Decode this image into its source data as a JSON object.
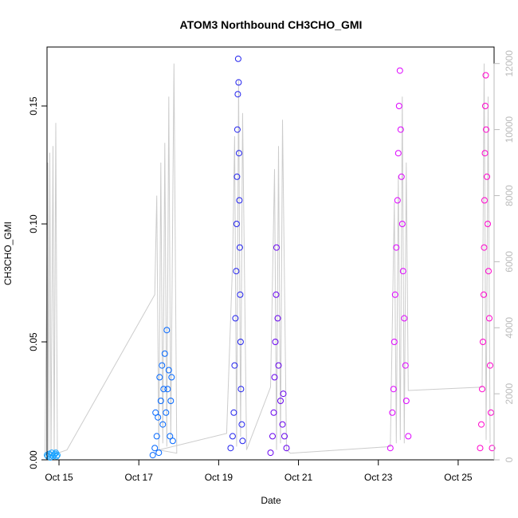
{
  "chart_data": {
    "type": "scatter",
    "title": "ATOM3 Northbound CH3CHO_GMI",
    "xlabel": "Date",
    "ylabel": "CH3CHO_GMI",
    "x_ticks": [
      "Oct 15",
      "Oct 17",
      "Oct 19",
      "Oct 21",
      "Oct 23",
      "Oct 25"
    ],
    "x_tick_days": [
      15,
      17,
      19,
      21,
      23,
      25
    ],
    "xlim": [
      "Oct 14.7",
      "Oct 25.9"
    ],
    "ylim": [
      0,
      0.175
    ],
    "y_ticks": [
      "0.00",
      "0.05",
      "0.10",
      "0.15"
    ],
    "y_tick_values": [
      0,
      0.05,
      0.1,
      0.15
    ],
    "secondary_axis": {
      "label": "",
      "ylim": [
        0,
        12500
      ],
      "ticks": [
        "0",
        "2000",
        "4000",
        "6000",
        "8000",
        "10000",
        "12000"
      ],
      "tick_values": [
        0,
        2000,
        4000,
        6000,
        8000,
        10000,
        12000
      ],
      "color": "#bbbbbb"
    },
    "grid": false,
    "colors": {
      "altitude_line": "#cccccc",
      "flight_colors": [
        "#1aa3ff",
        "#0066ff",
        "#2222ee",
        "#6600ee",
        "#dd00ff",
        "#ff00cc"
      ]
    },
    "altitude_series": [
      [
        14.65,
        100
      ],
      [
        14.72,
        9000
      ],
      [
        14.74,
        150
      ],
      [
        14.77,
        9300
      ],
      [
        14.8,
        100
      ],
      [
        14.85,
        9500
      ],
      [
        14.88,
        150
      ],
      [
        14.92,
        10200
      ],
      [
        14.96,
        200
      ],
      [
        15.2,
        300
      ],
      [
        17.4,
        5000
      ],
      [
        17.45,
        8000
      ],
      [
        17.5,
        300
      ],
      [
        17.55,
        9000
      ],
      [
        17.6,
        500
      ],
      [
        17.65,
        9600
      ],
      [
        17.7,
        400
      ],
      [
        17.75,
        11000
      ],
      [
        17.8,
        600
      ],
      [
        17.88,
        12000
      ],
      [
        17.95,
        200
      ],
      [
        17.5,
        300
      ],
      [
        19.2,
        800
      ],
      [
        19.35,
        6000
      ],
      [
        19.4,
        9800
      ],
      [
        19.45,
        400
      ],
      [
        19.5,
        11500
      ],
      [
        19.55,
        700
      ],
      [
        19.6,
        10500
      ],
      [
        19.7,
        300
      ],
      [
        20.3,
        2200
      ],
      [
        20.4,
        8800
      ],
      [
        20.45,
        300
      ],
      [
        20.5,
        9500
      ],
      [
        20.55,
        500
      ],
      [
        20.6,
        10300
      ],
      [
        20.7,
        300
      ],
      [
        20.8,
        200
      ],
      [
        23.3,
        400
      ],
      [
        23.4,
        7800
      ],
      [
        23.45,
        500
      ],
      [
        23.5,
        8600
      ],
      [
        23.55,
        600
      ],
      [
        23.6,
        11000
      ],
      [
        23.65,
        500
      ],
      [
        23.7,
        9000
      ],
      [
        23.75,
        2100
      ],
      [
        25.6,
        2200
      ],
      [
        25.65,
        12000
      ],
      [
        25.7,
        600
      ],
      [
        25.75,
        11000
      ],
      [
        25.8,
        500
      ]
    ],
    "series": [
      {
        "flight": 1,
        "points": [
          [
            14.7,
            0.002
          ],
          [
            14.72,
            0.0015
          ],
          [
            14.75,
            0.0025
          ],
          [
            14.78,
            0.001
          ],
          [
            14.8,
            0.002
          ],
          [
            14.82,
            0.003
          ],
          [
            14.85,
            0.0015
          ],
          [
            14.88,
            0.002
          ],
          [
            14.9,
            0.0025
          ],
          [
            14.92,
            0.003
          ],
          [
            14.94,
            0.0015
          ],
          [
            14.96,
            0.002
          ]
        ]
      },
      {
        "flight": 2,
        "points": [
          [
            17.35,
            0.002
          ],
          [
            17.4,
            0.005
          ],
          [
            17.42,
            0.02
          ],
          [
            17.45,
            0.01
          ],
          [
            17.48,
            0.018
          ],
          [
            17.5,
            0.003
          ],
          [
            17.52,
            0.035
          ],
          [
            17.55,
            0.025
          ],
          [
            17.58,
            0.04
          ],
          [
            17.6,
            0.015
          ],
          [
            17.62,
            0.03
          ],
          [
            17.65,
            0.045
          ],
          [
            17.68,
            0.02
          ],
          [
            17.7,
            0.055
          ],
          [
            17.72,
            0.03
          ],
          [
            17.75,
            0.038
          ],
          [
            17.78,
            0.01
          ],
          [
            17.8,
            0.025
          ],
          [
            17.82,
            0.035
          ],
          [
            17.85,
            0.008
          ]
        ]
      },
      {
        "flight": 3,
        "points": [
          [
            19.3,
            0.005
          ],
          [
            19.35,
            0.01
          ],
          [
            19.38,
            0.02
          ],
          [
            19.4,
            0.04
          ],
          [
            19.42,
            0.06
          ],
          [
            19.44,
            0.08
          ],
          [
            19.45,
            0.1
          ],
          [
            19.46,
            0.12
          ],
          [
            19.47,
            0.14
          ],
          [
            19.48,
            0.155
          ],
          [
            19.49,
            0.17
          ],
          [
            19.5,
            0.16
          ],
          [
            19.51,
            0.13
          ],
          [
            19.52,
            0.11
          ],
          [
            19.53,
            0.09
          ],
          [
            19.54,
            0.07
          ],
          [
            19.55,
            0.05
          ],
          [
            19.56,
            0.03
          ],
          [
            19.58,
            0.015
          ],
          [
            19.6,
            0.008
          ]
        ]
      },
      {
        "flight": 4,
        "points": [
          [
            20.3,
            0.003
          ],
          [
            20.35,
            0.01
          ],
          [
            20.38,
            0.02
          ],
          [
            20.4,
            0.035
          ],
          [
            20.42,
            0.05
          ],
          [
            20.44,
            0.07
          ],
          [
            20.45,
            0.09
          ],
          [
            20.48,
            0.06
          ],
          [
            20.5,
            0.04
          ],
          [
            20.55,
            0.025
          ],
          [
            20.6,
            0.015
          ],
          [
            20.62,
            0.028
          ],
          [
            20.65,
            0.01
          ],
          [
            20.7,
            0.005
          ]
        ]
      },
      {
        "flight": 5,
        "points": [
          [
            23.3,
            0.005
          ],
          [
            23.35,
            0.02
          ],
          [
            23.38,
            0.03
          ],
          [
            23.4,
            0.05
          ],
          [
            23.42,
            0.07
          ],
          [
            23.45,
            0.09
          ],
          [
            23.48,
            0.11
          ],
          [
            23.5,
            0.13
          ],
          [
            23.52,
            0.15
          ],
          [
            23.54,
            0.165
          ],
          [
            23.56,
            0.14
          ],
          [
            23.58,
            0.12
          ],
          [
            23.6,
            0.1
          ],
          [
            23.62,
            0.08
          ],
          [
            23.65,
            0.06
          ],
          [
            23.68,
            0.04
          ],
          [
            23.7,
            0.025
          ],
          [
            23.75,
            0.01
          ]
        ]
      },
      {
        "flight": 6,
        "points": [
          [
            25.55,
            0.005
          ],
          [
            25.58,
            0.015
          ],
          [
            25.6,
            0.03
          ],
          [
            25.62,
            0.05
          ],
          [
            25.64,
            0.07
          ],
          [
            25.65,
            0.09
          ],
          [
            25.66,
            0.11
          ],
          [
            25.67,
            0.13
          ],
          [
            25.68,
            0.15
          ],
          [
            25.69,
            0.163
          ],
          [
            25.7,
            0.14
          ],
          [
            25.72,
            0.12
          ],
          [
            25.74,
            0.1
          ],
          [
            25.76,
            0.08
          ],
          [
            25.78,
            0.06
          ],
          [
            25.8,
            0.04
          ],
          [
            25.82,
            0.02
          ],
          [
            25.85,
            0.005
          ]
        ]
      }
    ]
  }
}
